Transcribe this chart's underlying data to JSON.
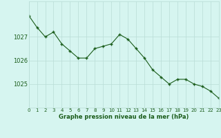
{
  "hours": [
    0,
    1,
    2,
    3,
    4,
    5,
    6,
    7,
    8,
    9,
    10,
    11,
    12,
    13,
    14,
    15,
    16,
    17,
    18,
    19,
    20,
    21,
    22,
    23
  ],
  "pressure": [
    1027.9,
    1027.4,
    1027.0,
    1027.2,
    1026.7,
    1026.4,
    1026.1,
    1026.1,
    1026.5,
    1026.6,
    1026.7,
    1027.1,
    1026.9,
    1026.5,
    1026.1,
    1025.6,
    1025.3,
    1025.0,
    1025.2,
    1025.2,
    1025.0,
    1024.9,
    1024.7,
    1024.4
  ],
  "line_color": "#1a5c1a",
  "marker": "+",
  "background_color": "#d6f5f0",
  "grid_color": "#b8dcd6",
  "xlabel": "Graphe pression niveau de la mer (hPa)",
  "xlabel_color": "#1a5c1a",
  "tick_label_color": "#1a5c1a",
  "ylim": [
    1024.0,
    1028.5
  ],
  "yticks": [
    1025,
    1026,
    1027
  ],
  "figsize": [
    3.2,
    2.0
  ],
  "dpi": 100
}
